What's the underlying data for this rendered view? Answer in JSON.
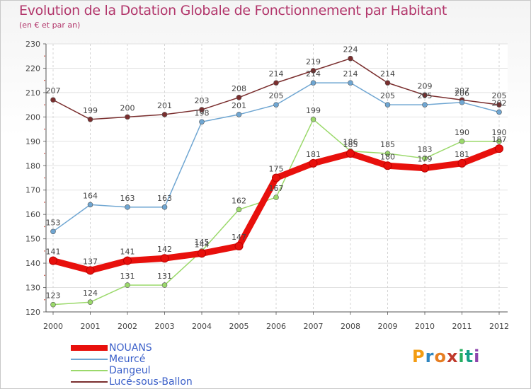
{
  "title": "Evolution de la Dotation Globale de Fonctionnement par Habitant",
  "subtitle": "(en € et par an)",
  "logo": {
    "text": "Proxiti",
    "colors": [
      "#f39c12",
      "#2e86c1",
      "#e67e22",
      "#c0392b",
      "#27ae60",
      "#16a085",
      "#8e44ad"
    ]
  },
  "chart_data": {
    "type": "line",
    "title": "Evolution de la Dotation Globale de Fonctionnement par Habitant",
    "subtitle": "(en € et par an)",
    "x": [
      "2000",
      "2001",
      "2002",
      "2003",
      "2004",
      "2005",
      "2006",
      "2007",
      "2008",
      "2009",
      "2010",
      "2011",
      "2012"
    ],
    "ylim": [
      120,
      230
    ],
    "yticks": [
      120,
      130,
      140,
      150,
      160,
      170,
      180,
      190,
      200,
      210,
      220,
      230
    ],
    "grid": true,
    "legend_position": "bottom-left",
    "series": [
      {
        "name": "NOUANS",
        "color": "#e8100c",
        "values": [
          141,
          137,
          141,
          142,
          144,
          147,
          175,
          181,
          185,
          180,
          179,
          181,
          187
        ],
        "labels": [
          "141",
          "137",
          "141",
          "142",
          "144",
          "147",
          "175",
          "181",
          "185",
          "180",
          "179",
          "181",
          "187"
        ]
      },
      {
        "name": "Meurcé",
        "color": "#6fa6d2",
        "values": [
          153,
          164,
          163,
          163,
          198,
          201,
          205,
          214,
          214,
          205,
          205,
          206,
          202
        ],
        "labels": [
          "153",
          "164",
          "163",
          "163",
          "198",
          "201",
          "205",
          "214",
          "214",
          "205",
          "205",
          "206",
          "202"
        ]
      },
      {
        "name": "Dangeul",
        "color": "#9bd96b",
        "values": [
          123,
          124,
          131,
          131,
          145,
          162,
          167,
          199,
          186,
          185,
          183,
          190,
          190
        ],
        "labels": [
          "123",
          "124",
          "131",
          "131",
          "145",
          "162",
          "167",
          "199",
          "186",
          "185",
          "183",
          "190",
          "190"
        ]
      },
      {
        "name": "Lucé-sous-Ballon",
        "color": "#7a2e2e",
        "values": [
          207,
          199,
          200,
          201,
          203,
          208,
          214,
          219,
          224,
          214,
          209,
          207,
          205
        ],
        "labels": [
          "207",
          "199",
          "200",
          "201",
          "203",
          "208",
          "214",
          "219",
          "224",
          "214",
          "209",
          "207",
          "205"
        ]
      }
    ]
  }
}
